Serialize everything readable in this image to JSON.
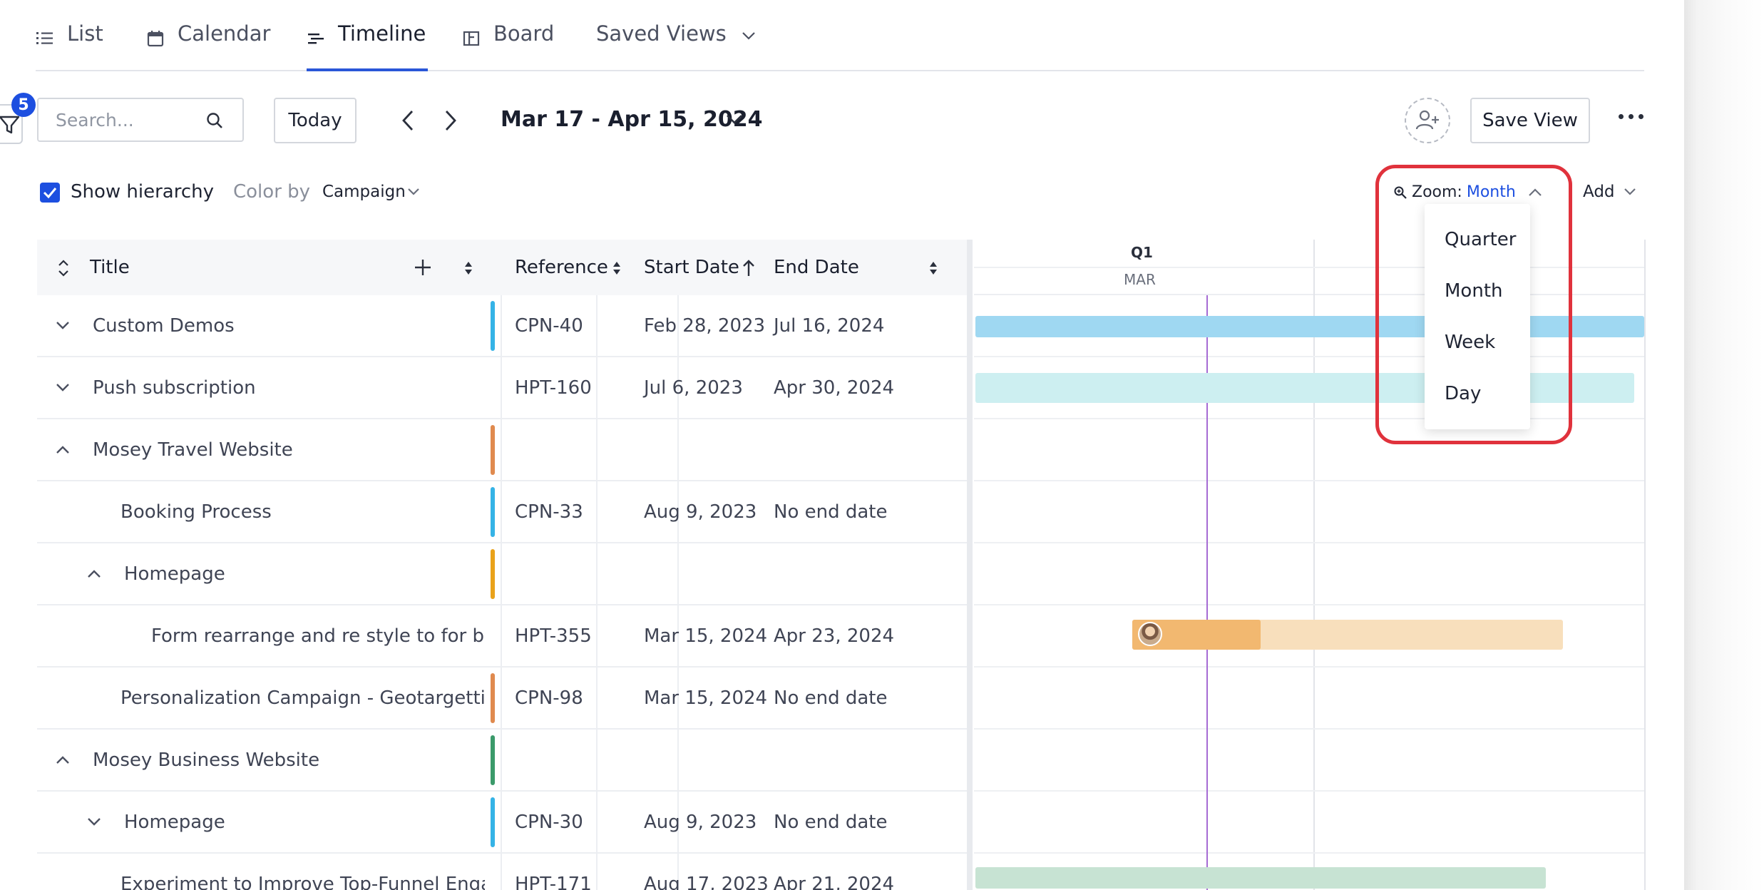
{
  "tabs": [
    {
      "label": "List",
      "icon": "list-icon"
    },
    {
      "label": "Calendar",
      "icon": "calendar-icon"
    },
    {
      "label": "Timeline",
      "icon": "timeline-icon",
      "active": true
    },
    {
      "label": "Board",
      "icon": "board-icon"
    },
    {
      "label": "Saved Views",
      "icon": "chevron-down-icon"
    }
  ],
  "toolbar": {
    "filter_count": "5",
    "search_placeholder": "Search...",
    "today_label": "Today",
    "date_range": "Mar 17 - Apr 15, 2024",
    "save_view_label": "Save View"
  },
  "options": {
    "show_hierarchy_label": "Show hierarchy",
    "show_hierarchy_checked": true,
    "color_by_label": "Color by",
    "color_by_value": "Campaign",
    "zoom_label": "Zoom:",
    "zoom_value": "Month",
    "add_label": "Add"
  },
  "zoom_menu": {
    "items": [
      "Quarter",
      "Month",
      "Week",
      "Day"
    ]
  },
  "table": {
    "headers": {
      "title": "Title",
      "reference": "Reference",
      "start": "Start Date",
      "end": "End Date"
    },
    "rows": [
      {
        "title": "Custom Demos",
        "ref": "CPN-40",
        "start": "Feb 28, 2023",
        "end": "Jul 16, 2024",
        "color": "#35b3e6",
        "expand": "down",
        "indent": 0
      },
      {
        "title": "Push subscription",
        "ref": "HPT-160",
        "start": "Jul 6, 2023",
        "end": "Apr 30, 2024",
        "color": "",
        "expand": "down",
        "indent": 0
      },
      {
        "title": "Mosey Travel Website",
        "ref": "",
        "start": "",
        "end": "",
        "color": "#e08a4e",
        "expand": "up",
        "indent": 0
      },
      {
        "title": "Booking Process",
        "ref": "CPN-33",
        "start": "Aug 9, 2023",
        "end": "No end date",
        "color": "#35b3e6",
        "expand": "",
        "indent": 1
      },
      {
        "title": "Homepage",
        "ref": "",
        "start": "",
        "end": "",
        "color": "#e9a21a",
        "expand": "up",
        "indent": 1
      },
      {
        "title": "Form rearrange and re style to for better",
        "ref": "HPT-355",
        "start": "Mar 15, 2024",
        "end": "Apr 23, 2024",
        "color": "",
        "expand": "",
        "indent": 2
      },
      {
        "title": "Personalization Campaign - Geotargetting",
        "ref": "CPN-98",
        "start": "Mar 15, 2024",
        "end": "No end date",
        "color": "#e08a4e",
        "expand": "",
        "indent": 1
      },
      {
        "title": "Mosey Business Website",
        "ref": "",
        "start": "",
        "end": "",
        "color": "#3b9a6a",
        "expand": "up",
        "indent": 0
      },
      {
        "title": "Homepage",
        "ref": "CPN-30",
        "start": "Aug 9, 2023",
        "end": "No end date",
        "color": "#35b3e6",
        "expand": "down",
        "indent": 1
      },
      {
        "title": "Experiment to Improve Top-Funnel Engagement",
        "ref": "HPT-171",
        "start": "Aug 17, 2023",
        "end": "Apr 21, 2024",
        "color": "",
        "expand": "",
        "indent": 1
      }
    ]
  },
  "timeline": {
    "quarter_label": "Q1",
    "month_label": "MAR"
  },
  "colors": {
    "accent": "#1d4fe0",
    "highlight_border": "#e0323c",
    "today_line": "#a66bd4"
  }
}
